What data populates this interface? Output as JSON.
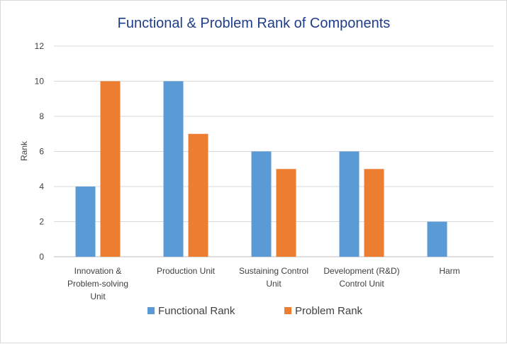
{
  "chart_data": {
    "type": "bar",
    "title": "Functional & Problem Rank of Components",
    "ylabel": "Rank",
    "xlabel": "",
    "ylim": [
      0,
      12
    ],
    "yticks": [
      0,
      2,
      4,
      6,
      8,
      10,
      12
    ],
    "categories": [
      [
        "Innovation &",
        "Problem-solving",
        "Unit"
      ],
      [
        "Production Unit"
      ],
      [
        "Sustaining Control",
        "Unit"
      ],
      [
        "Development (R&D)",
        "Control Unit"
      ],
      [
        "Harm"
      ]
    ],
    "series": [
      {
        "name": "Functional Rank",
        "color": "#5b9bd5",
        "values": [
          4,
          10,
          6,
          6,
          2
        ]
      },
      {
        "name": "Problem Rank",
        "color": "#ed7d31",
        "values": [
          10,
          7,
          5,
          5,
          null
        ]
      }
    ],
    "grid": true,
    "legend_position": "bottom"
  }
}
